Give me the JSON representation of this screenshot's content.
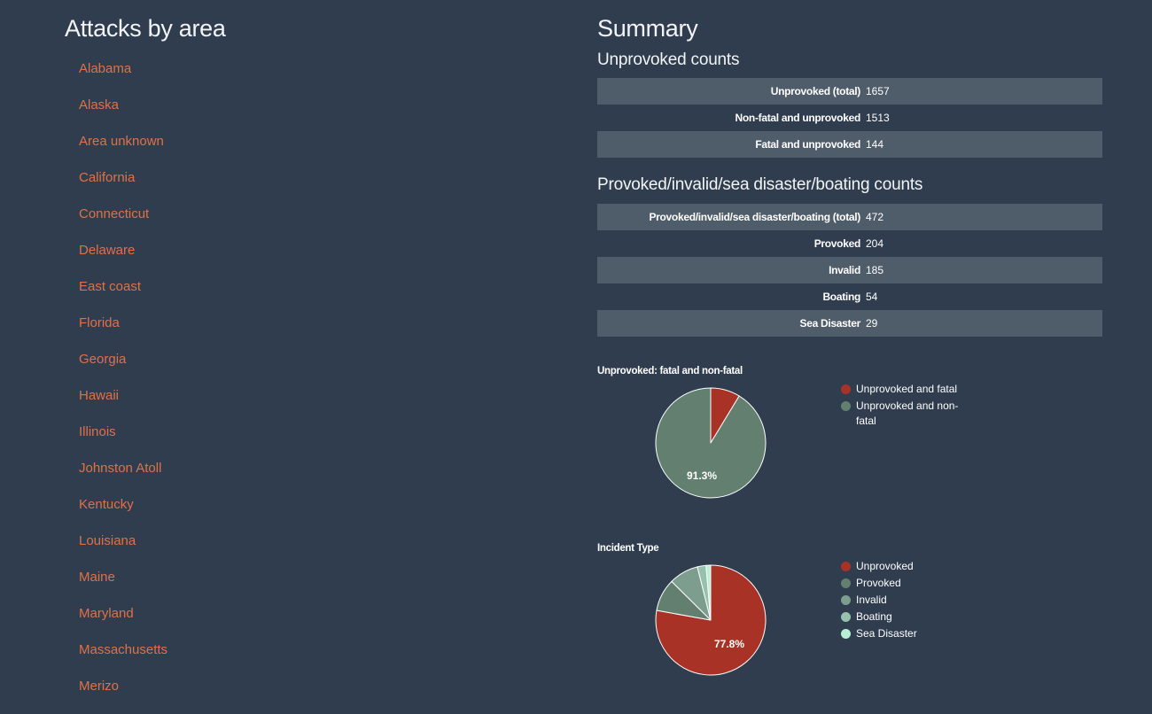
{
  "left": {
    "title": "Attacks by area",
    "areas": [
      "Alabama",
      "Alaska",
      "Area unknown",
      "California",
      "Connecticut",
      "Delaware",
      "East coast",
      "Florida",
      "Georgia",
      "Hawaii",
      "Illinois",
      "Johnston Atoll",
      "Kentucky",
      "Louisiana",
      "Maine",
      "Maryland",
      "Massachusetts",
      "Merizo"
    ]
  },
  "summary": {
    "title": "Summary",
    "unprovoked": {
      "heading": "Unprovoked counts",
      "rows": [
        {
          "label": "Unprovoked (total)",
          "value": "1657"
        },
        {
          "label": "Non-fatal and unprovoked",
          "value": "1513"
        },
        {
          "label": "Fatal and unprovoked",
          "value": "144"
        }
      ]
    },
    "provoked": {
      "heading": "Provoked/invalid/sea disaster/boating counts",
      "rows": [
        {
          "label": "Provoked/invalid/sea disaster/boating (total)",
          "value": "472"
        },
        {
          "label": "Provoked",
          "value": "204"
        },
        {
          "label": "Invalid",
          "value": "185"
        },
        {
          "label": "Boating",
          "value": "54"
        },
        {
          "label": "Sea Disaster",
          "value": "29"
        }
      ]
    }
  },
  "colors": {
    "background": "#2f3d4f",
    "link": "#e07146",
    "row_stripe": "#4f5c6a"
  },
  "chart_data": [
    {
      "type": "pie",
      "title": "Unprovoked: fatal and non-fatal",
      "categories": [
        "Unprovoked and fatal",
        "Unprovoked and non-fatal"
      ],
      "values": [
        144,
        1513
      ],
      "colors": [
        "#a93226",
        "#627f6f"
      ],
      "data_labels": [
        "",
        "91.3%"
      ],
      "legend": "right"
    },
    {
      "type": "pie",
      "title": "Incident Type",
      "categories": [
        "Unprovoked",
        "Provoked",
        "Invalid",
        "Boating",
        "Sea Disaster"
      ],
      "values": [
        1657,
        204,
        185,
        54,
        29
      ],
      "colors": [
        "#a93226",
        "#627f6f",
        "#7d9e8e",
        "#98c1ad",
        "#b9efd5"
      ],
      "data_labels": [
        "77.8%",
        "",
        "",
        "",
        ""
      ],
      "legend": "right"
    }
  ]
}
